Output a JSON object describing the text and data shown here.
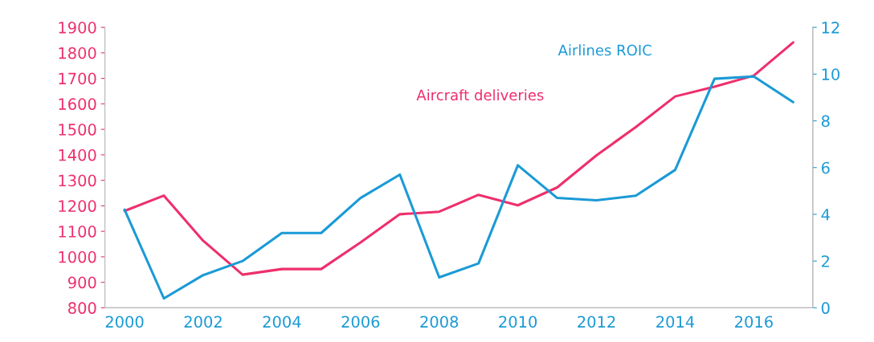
{
  "chart_data": {
    "type": "line",
    "x": [
      2000,
      2001,
      2002,
      2003,
      2004,
      2005,
      2006,
      2007,
      2008,
      2009,
      2010,
      2011,
      2012,
      2013,
      2014,
      2015,
      2016,
      2017
    ],
    "series": [
      {
        "name": "Aircraft deliveries",
        "color": "#ee2f6c",
        "values": [
          1180,
          1240,
          1063,
          930,
          952,
          952,
          1056,
          1167,
          1177,
          1243,
          1202,
          1272,
          1398,
          1509,
          1629,
          1667,
          1711,
          1841
        ]
      },
      {
        "name": "Airlines ROIC",
        "color": "#1a9ad6",
        "axis": "y2",
        "values": [
          4.2,
          0.4,
          1.4,
          2.0,
          3.2,
          3.2,
          4.7,
          5.7,
          1.3,
          1.9,
          6.1,
          4.7,
          4.6,
          4.8,
          5.9,
          9.8,
          9.9,
          8.8
        ]
      }
    ],
    "xlim": [
      1999.5,
      2017.5
    ],
    "xticks": [
      2000,
      2002,
      2004,
      2006,
      2008,
      2010,
      2012,
      2014,
      2016
    ],
    "ylim": [
      800,
      1900
    ],
    "yticks": [
      800,
      900,
      1000,
      1100,
      1200,
      1300,
      1400,
      1500,
      1600,
      1700,
      1800,
      1900
    ],
    "y2lim": [
      0,
      12
    ],
    "y2ticks": [
      0,
      2,
      4,
      6,
      8,
      10,
      12
    ],
    "grid": false,
    "legend": false,
    "marker": "none",
    "line_style": "solid"
  }
}
